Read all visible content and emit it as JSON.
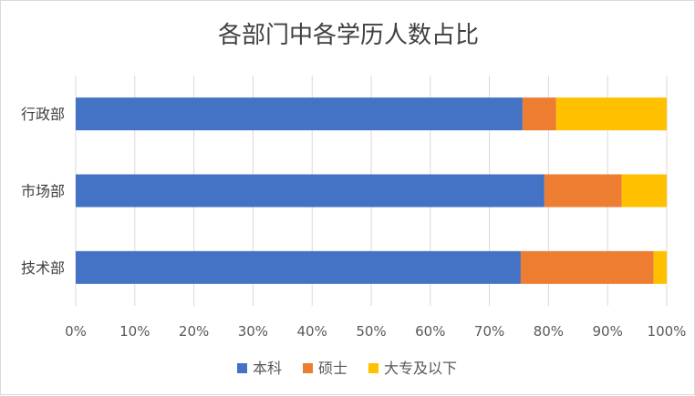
{
  "chart_data": {
    "type": "bar",
    "orientation": "horizontal",
    "stacked": "percent",
    "title": "各部门中各学历人数占比",
    "categories": [
      "行政部",
      "市场部",
      "技术部"
    ],
    "series": [
      {
        "name": "本科",
        "color": "#4472C4",
        "values": [
          75.6,
          79.3,
          75.3
        ]
      },
      {
        "name": "硕士",
        "color": "#ED7D31",
        "values": [
          5.7,
          13.1,
          22.5
        ]
      },
      {
        "name": "大专及以下",
        "color": "#FFC000",
        "values": [
          18.7,
          7.6,
          2.2
        ]
      }
    ],
    "xlim": [
      0,
      100
    ],
    "xticks": [
      "0%",
      "10%",
      "20%",
      "30%",
      "40%",
      "50%",
      "60%",
      "70%",
      "80%",
      "90%",
      "100%"
    ],
    "grid": true,
    "legend_position": "bottom"
  }
}
